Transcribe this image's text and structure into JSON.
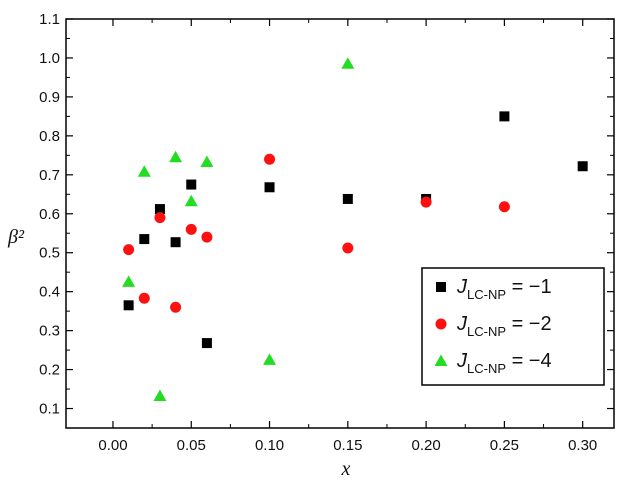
{
  "chart_data": {
    "type": "scatter",
    "xlabel": "x",
    "ylabel": "β²",
    "xlim": [
      -0.03,
      0.32
    ],
    "ylim": [
      0.05,
      1.1
    ],
    "xticks": [
      "0.00",
      "0.05",
      "0.10",
      "0.15",
      "0.20",
      "0.25",
      "0.30"
    ],
    "yticks": [
      "0.1",
      "0.2",
      "0.3",
      "0.4",
      "0.5",
      "0.6",
      "0.7",
      "0.8",
      "0.9",
      "1.0",
      "1.1"
    ],
    "grid": false,
    "legend_position": "bottom-right",
    "series": [
      {
        "legend_main": "J",
        "legend_sub": "LC-NP",
        "legend_value": " = −1",
        "color": "#000000",
        "marker": "square",
        "x": [
          0.01,
          0.02,
          0.03,
          0.04,
          0.05,
          0.06,
          0.1,
          0.15,
          0.2,
          0.25,
          0.3
        ],
        "y": [
          0.365,
          0.535,
          0.612,
          0.527,
          0.675,
          0.268,
          0.668,
          0.638,
          0.638,
          0.85,
          0.722
        ]
      },
      {
        "legend_main": "J",
        "legend_sub": "LC-NP",
        "legend_value": " = −2",
        "color": "#ff1010",
        "marker": "circle",
        "x": [
          0.01,
          0.02,
          0.03,
          0.04,
          0.05,
          0.06,
          0.1,
          0.15,
          0.2,
          0.25
        ],
        "y": [
          0.508,
          0.383,
          0.59,
          0.36,
          0.56,
          0.54,
          0.74,
          0.512,
          0.63,
          0.618
        ]
      },
      {
        "legend_main": "J",
        "legend_sub": "LC-NP",
        "legend_value": " = −4",
        "color": "#22dd22",
        "marker": "triangle",
        "x": [
          0.01,
          0.02,
          0.03,
          0.04,
          0.05,
          0.06,
          0.1,
          0.15
        ],
        "y": [
          0.425,
          0.708,
          0.132,
          0.745,
          0.632,
          0.733,
          0.225,
          0.985
        ]
      }
    ]
  }
}
